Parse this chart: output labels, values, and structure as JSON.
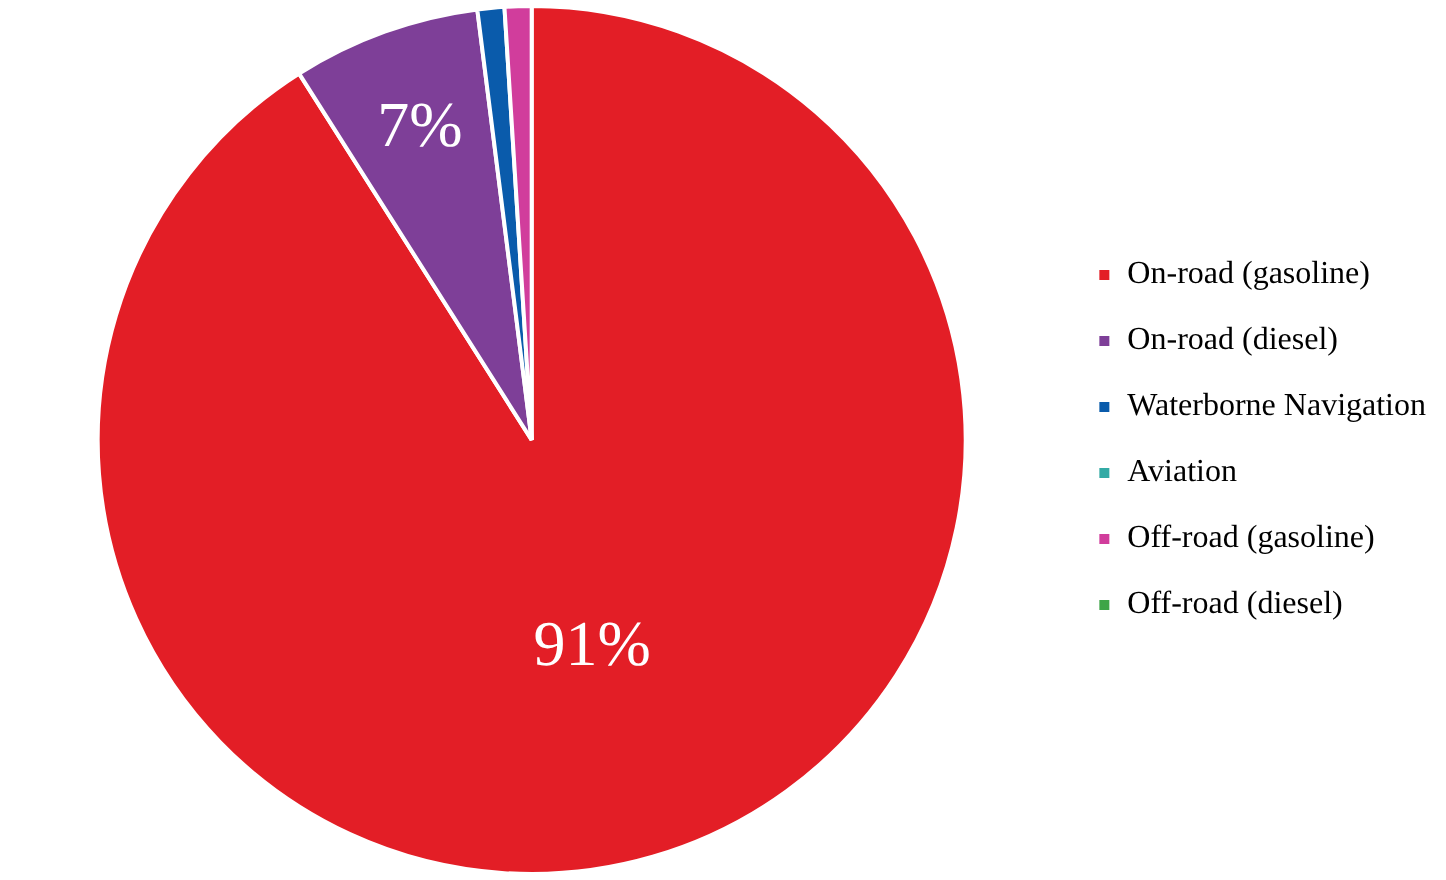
{
  "chart_data": {
    "type": "pie",
    "categories": [
      "On-road (gasoline)",
      "On-road (diesel)",
      "Waterborne Navigation",
      "Aviation",
      "Off-road (gasoline)",
      "Off-road (diesel)"
    ],
    "values": [
      91,
      7,
      1,
      0,
      1,
      0
    ],
    "colors": [
      "#e31e26",
      "#7e3f98",
      "#0a5bab",
      "#33aaa5",
      "#d13d9c",
      "#3ea547"
    ],
    "value_labels": [
      "91%",
      "7%",
      null,
      null,
      null,
      null
    ],
    "legend": "right"
  }
}
